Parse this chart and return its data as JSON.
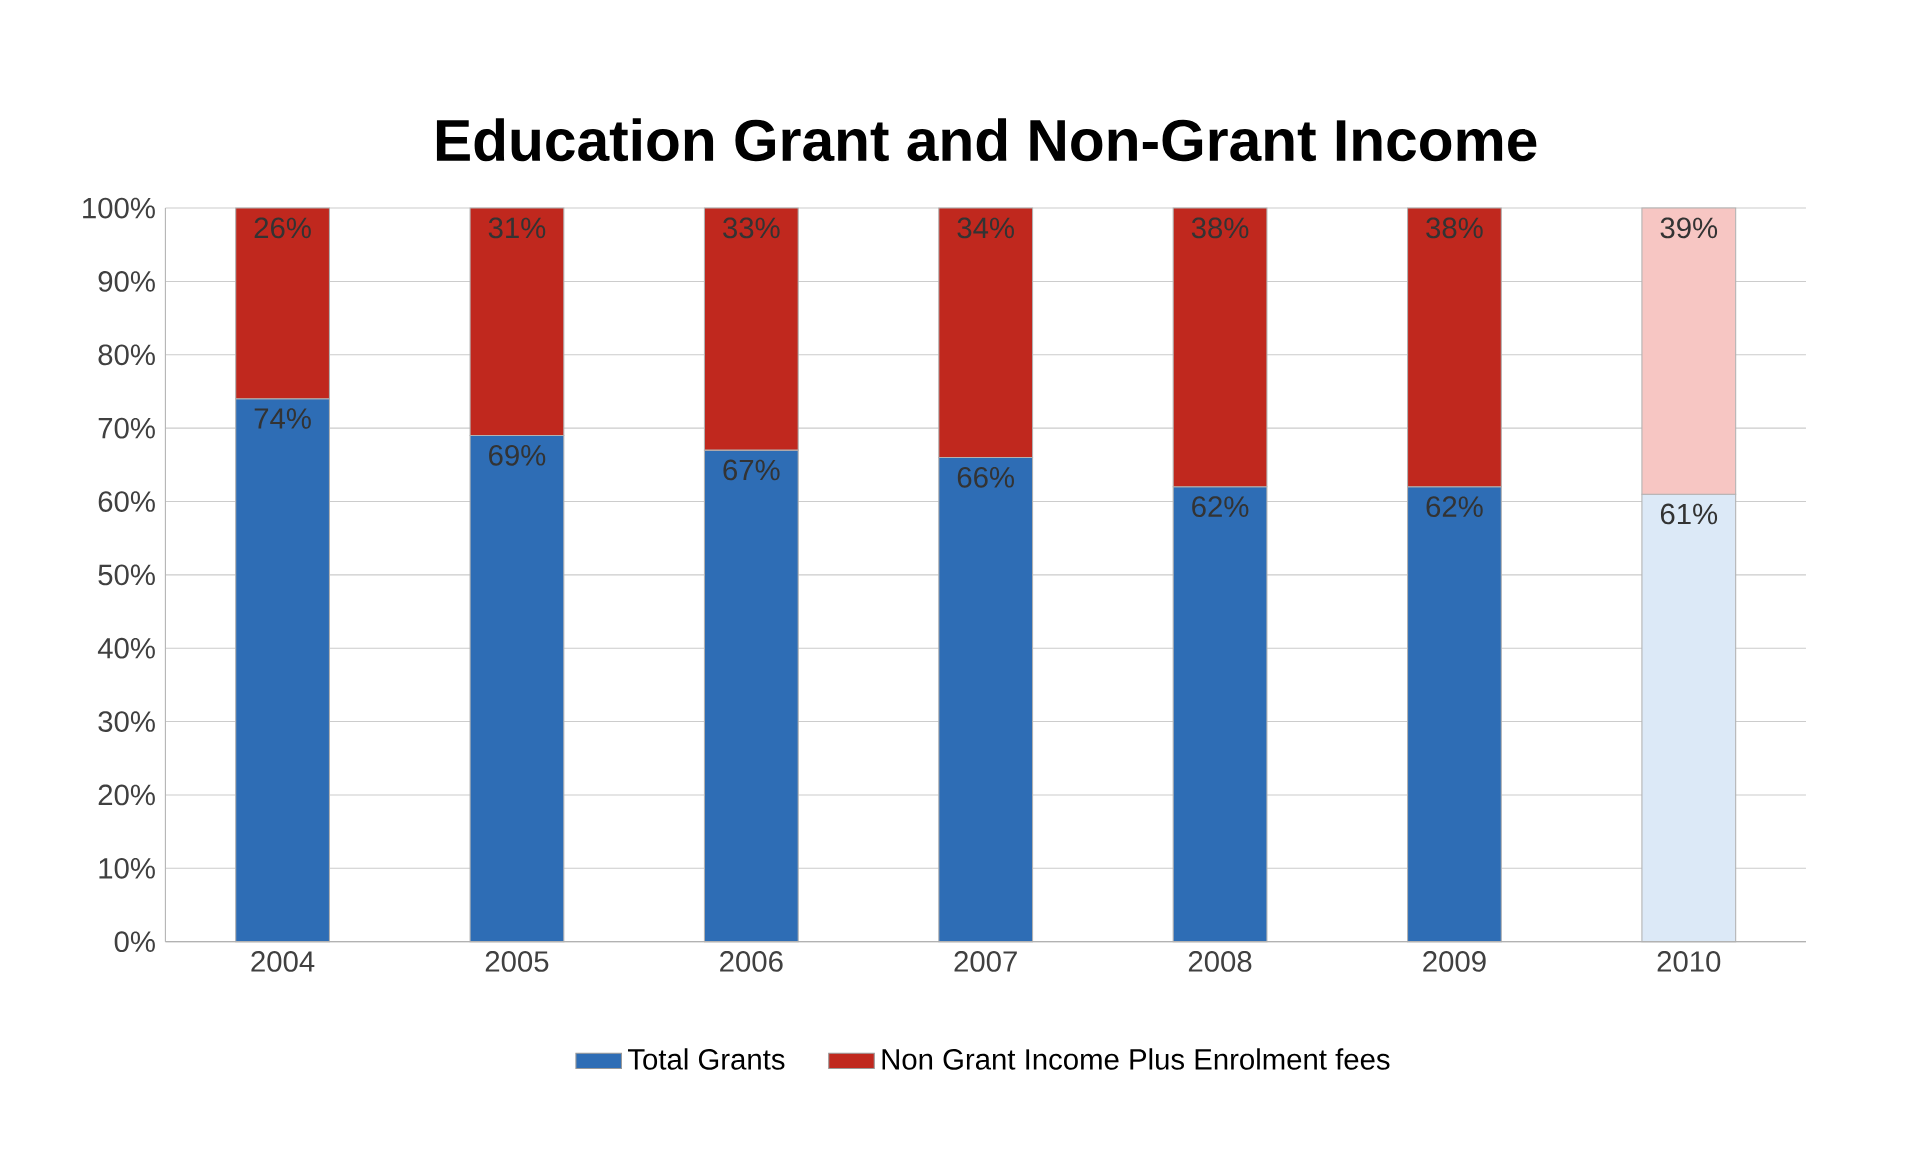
{
  "chart_data": {
    "type": "bar",
    "title": "Education Grant and Non-Grant Income",
    "stacked": true,
    "categories": [
      "2004",
      "2005",
      "2006",
      "2007",
      "2008",
      "2009",
      "2010"
    ],
    "series": [
      {
        "name": "Total Grants",
        "color": "#2e6db5",
        "colors": [
          "#2e6db5",
          "#2e6db5",
          "#2e6db5",
          "#2e6db5",
          "#2e6db5",
          "#2e6db5",
          "#dce9f7"
        ],
        "values": [
          74,
          69,
          67,
          66,
          62,
          62,
          61
        ],
        "value_labels": [
          "74%",
          "69%",
          "67%",
          "66%",
          "62%",
          "62%",
          "61%"
        ]
      },
      {
        "name": "Non Grant Income Plus Enrolment fees",
        "color": "#c0281e",
        "colors": [
          "#c0281e",
          "#c0281e",
          "#c0281e",
          "#c0281e",
          "#c0281e",
          "#c0281e",
          "#f7c6c3"
        ],
        "values": [
          26,
          31,
          33,
          34,
          38,
          38,
          39
        ],
        "value_labels": [
          "26%",
          "31%",
          "33%",
          "34%",
          "38%",
          "38%",
          "39%"
        ]
      }
    ],
    "ylim": [
      0,
      100
    ],
    "yticks": [
      {
        "value": 0,
        "label": "0%"
      },
      {
        "value": 10,
        "label": "10%"
      },
      {
        "value": 20,
        "label": "20%"
      },
      {
        "value": 30,
        "label": "30%"
      },
      {
        "value": 40,
        "label": "40%"
      },
      {
        "value": 50,
        "label": "50%"
      },
      {
        "value": 60,
        "label": "60%"
      },
      {
        "value": 70,
        "label": "70%"
      },
      {
        "value": 80,
        "label": "80%"
      },
      {
        "value": 90,
        "label": "90%"
      },
      {
        "value": 100,
        "label": "100%"
      }
    ],
    "grid": "y",
    "legend": "bottom"
  }
}
